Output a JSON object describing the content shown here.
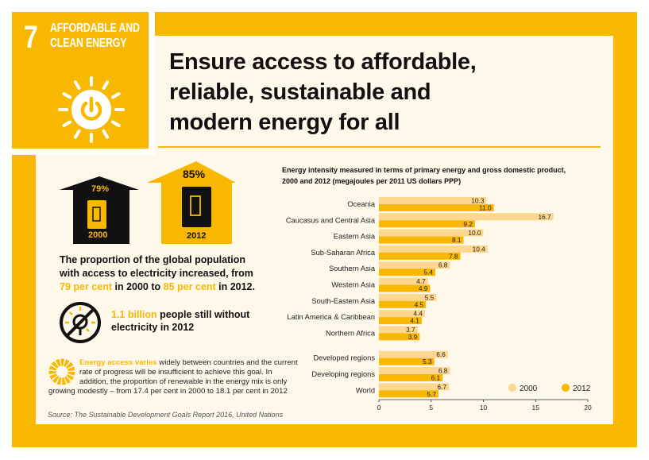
{
  "goal": {
    "number": "7",
    "name_line1": "AFFORDABLE AND",
    "name_line2": "CLEAN ENERGY",
    "icon": "sun-power-icon"
  },
  "headline": {
    "line1": "Ensure access to affordable,",
    "line2": "reliable, sustainable and",
    "line3": "modern energy for all"
  },
  "colors": {
    "brand_yellow": "#F9B800",
    "light_yellow": "#FDD78F",
    "cream": "#FEF8EA",
    "dark": "#111111"
  },
  "access": {
    "house_2000": {
      "percent": "79%",
      "year": "2000"
    },
    "house_2012": {
      "percent": "85%",
      "year": "2012"
    },
    "text": {
      "line1": "The proportion of the global population",
      "line2": "with access to electricity increased, from",
      "line3_hl1": "79 per cent",
      "line3_mid": " in 2000 to ",
      "line3_hl2": "85 per cent",
      "line3_end": " in 2012."
    }
  },
  "without": {
    "highlight": "1.1 billion",
    "line1_rest": " people still without",
    "line2": "electricity in 2012",
    "icon": "no-electricity-icon"
  },
  "note": {
    "highlight": "Energy access varies",
    "line1_rest": " widely between countries and the current",
    "line2": "rate of progress will be insufficient to achieve this goal. In",
    "line3": "addition, the proportion of renewable in the energy mix is only",
    "line4": "growing modestly – from 17.4 per cent in 2000 to 18.1 per cent in 2012",
    "icon": "sun-ring-icon"
  },
  "source": "Source: The Sustainable Development Goals Report 2016, United Nations",
  "chart_data": {
    "type": "bar",
    "orientation": "horizontal",
    "title_line1": "Energy intensity measured in terms of primary energy and gross domestic product,",
    "title_line2": "2000 and 2012 (megajoules per 2011 US dollars PPP)",
    "categories": [
      "Oceania",
      "Caucasus and Central Asia",
      "Eastern Asia",
      "Sub-Saharan Africa",
      "Southern Asia",
      "Western Asia",
      "South-Eastern Asia",
      "Latin America & Caribbean",
      "Northern Africa",
      "Developed regions",
      "Developing regions",
      "World"
    ],
    "series": [
      {
        "name": "2000",
        "color": "#FDD78F",
        "values": [
          10.3,
          16.7,
          10.0,
          10.4,
          6.8,
          4.7,
          5.5,
          4.4,
          3.7,
          6.6,
          6.8,
          6.7
        ]
      },
      {
        "name": "2012",
        "color": "#F9B800",
        "values": [
          11.0,
          9.2,
          8.1,
          7.8,
          5.4,
          4.9,
          4.5,
          4.1,
          3.9,
          5.3,
          6.1,
          5.7
        ]
      }
    ],
    "value_labels": [
      [
        "10.3",
        "16.7",
        "10.0",
        "10.4",
        "6.8",
        "4.7",
        "5.5",
        "4.4",
        "3.7",
        "6.6",
        "6.8",
        "6.7"
      ],
      [
        "11.0",
        "9.2",
        "8.1",
        "7.8",
        "5.4",
        "4.9",
        "4.5",
        "4.1",
        "3.9",
        "5.3",
        "6.1",
        "5.7"
      ]
    ],
    "xlim": [
      0,
      20
    ],
    "xticks": [
      "0",
      "5",
      "10",
      "15",
      "20"
    ],
    "grid": false,
    "legend": "bottom-right"
  }
}
